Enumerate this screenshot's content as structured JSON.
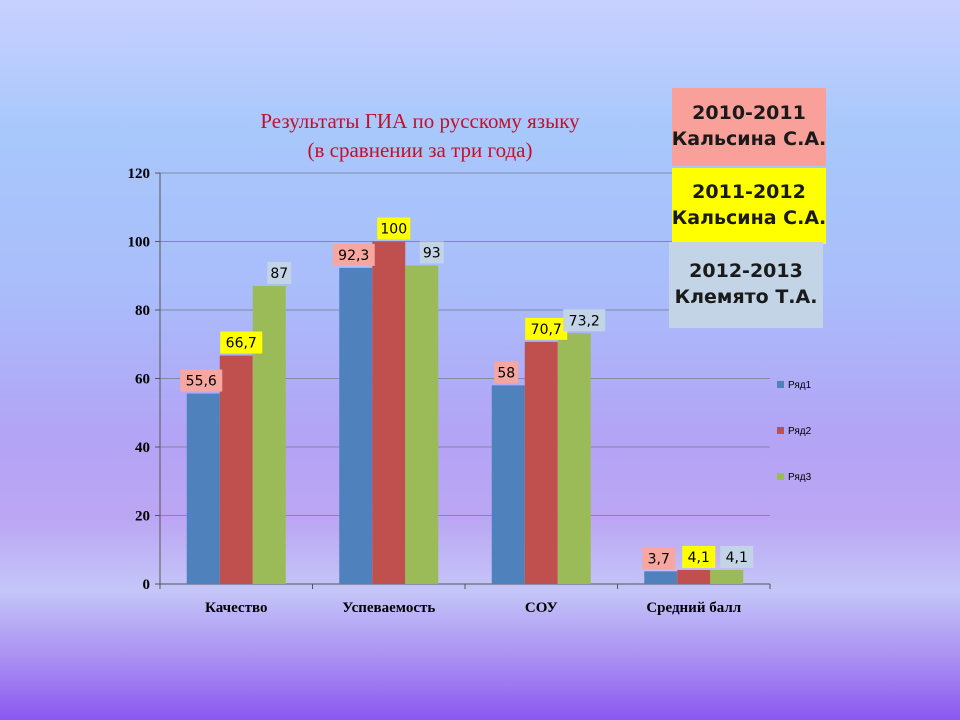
{
  "chart_data": {
    "type": "bar",
    "title": [
      "Результаты  ГИА по русскому языку",
      "(в сравнении за три года)"
    ],
    "categories": [
      "Качество",
      "Успеваемость",
      "СОУ",
      "Средний балл"
    ],
    "series": [
      {
        "name": "Ряд1",
        "color": "#4f81bd",
        "label_bg": "#f7a6a0",
        "values": [
          55.6,
          92.3,
          58,
          3.7
        ],
        "labels": [
          "55,6",
          "92,3",
          "58",
          "3,7"
        ]
      },
      {
        "name": "Ряд2",
        "color": "#c0504d",
        "label_bg": "#ffff00",
        "values": [
          66.7,
          100,
          70.7,
          4.1
        ],
        "labels": [
          "66,7",
          "100",
          "70,7",
          "4,1"
        ]
      },
      {
        "name": "Ряд3",
        "color": "#9bbb59",
        "label_bg": "#c2d4e6",
        "values": [
          87,
          93,
          73.2,
          4.1
        ],
        "labels": [
          "87",
          "93",
          "73,2",
          "4,1"
        ]
      }
    ],
    "yticks": [
      "0",
      "20",
      "40",
      "60",
      "80",
      "100",
      "120"
    ],
    "ylim": [
      0,
      120
    ],
    "grid": true,
    "legend_position": "right"
  },
  "legend_boxes": [
    {
      "line1": "2010-2011",
      "line2": "Кальсина С.А.",
      "bg": "#f9a09a"
    },
    {
      "line1": "2011-2012",
      "line2": "Кальсина С.А.",
      "bg": "#ffff00"
    },
    {
      "line1": "2012-2013",
      "line2": "Клемято Т.А.",
      "bg": "#c2d4e6"
    }
  ]
}
